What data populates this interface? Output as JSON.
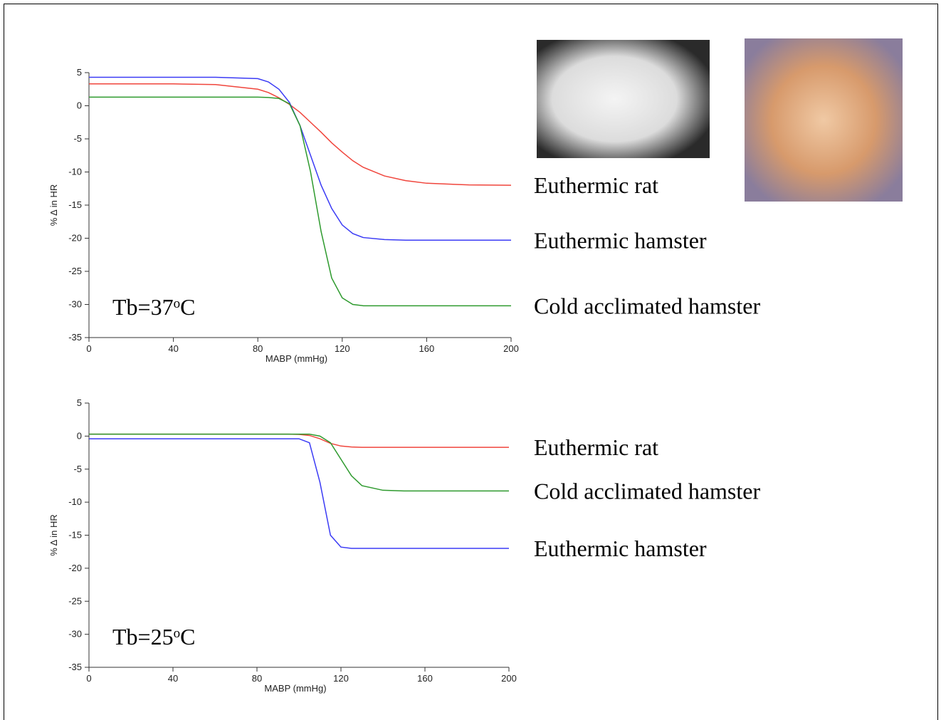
{
  "chart_data": [
    {
      "type": "line",
      "ylabel": "% Δ in HR",
      "xlabel": "MABP (mmHg)",
      "annotation": [
        "Tb=37",
        "o",
        "C"
      ],
      "xlim": [
        0,
        200
      ],
      "ylim": [
        -35,
        5
      ],
      "xticks": [
        0,
        40,
        80,
        120,
        160,
        200
      ],
      "yticks": [
        5,
        0,
        -5,
        -10,
        -15,
        -20,
        -25,
        -30,
        -35
      ],
      "x": [
        0,
        20,
        40,
        60,
        80,
        85,
        90,
        95,
        100,
        105,
        110,
        115,
        120,
        125,
        130,
        140,
        150,
        160,
        180,
        200
      ],
      "series": [
        {
          "name": "Euthermic rat",
          "color": "#f0453c",
          "values": [
            3.3,
            3.3,
            3.3,
            3.2,
            2.5,
            2.0,
            1.2,
            0.2,
            -1.0,
            -2.5,
            -4.0,
            -5.6,
            -7.0,
            -8.3,
            -9.3,
            -10.6,
            -11.3,
            -11.7,
            -11.95,
            -12
          ]
        },
        {
          "name": "Euthermic hamster",
          "color": "#3b3bf5",
          "values": [
            4.3,
            4.3,
            4.3,
            4.3,
            4.1,
            3.6,
            2.5,
            0.5,
            -3,
            -7.5,
            -12,
            -15.5,
            -18,
            -19.3,
            -19.9,
            -20.2,
            -20.3,
            -20.3,
            -20.3,
            -20.3
          ]
        },
        {
          "name": "Cold acclimated hamster",
          "color": "#2e9a2e",
          "values": [
            1.3,
            1.3,
            1.3,
            1.3,
            1.3,
            1.25,
            1.1,
            0.3,
            -3,
            -10,
            -19,
            -26,
            -29,
            -30,
            -30.2,
            -30.2,
            -30.2,
            -30.2,
            -30.2,
            -30.2
          ]
        }
      ]
    },
    {
      "type": "line",
      "ylabel": "% Δ in HR",
      "xlabel": "MABP (mmHg)",
      "annotation": [
        "Tb=25",
        "o",
        "C"
      ],
      "xlim": [
        0,
        200
      ],
      "ylim": [
        -35,
        5
      ],
      "xticks": [
        0,
        40,
        80,
        120,
        160,
        200
      ],
      "yticks": [
        5,
        0,
        -5,
        -10,
        -15,
        -20,
        -25,
        -30,
        -35
      ],
      "x": [
        0,
        20,
        40,
        60,
        80,
        85,
        90,
        95,
        100,
        105,
        110,
        115,
        120,
        125,
        130,
        140,
        150,
        160,
        180,
        200
      ],
      "series": [
        {
          "name": "Euthermic rat",
          "color": "#f0453c",
          "values": [
            0.3,
            0.3,
            0.3,
            0.3,
            0.3,
            0.3,
            0.3,
            0.3,
            0.25,
            0.1,
            -0.4,
            -1.1,
            -1.5,
            -1.65,
            -1.7,
            -1.7,
            -1.7,
            -1.7,
            -1.7,
            -1.7
          ]
        },
        {
          "name": "Cold acclimated hamster",
          "color": "#2e9a2e",
          "values": [
            0.3,
            0.3,
            0.3,
            0.3,
            0.3,
            0.3,
            0.3,
            0.3,
            0.3,
            0.3,
            0.0,
            -1.0,
            -3.5,
            -6.0,
            -7.5,
            -8.2,
            -8.3,
            -8.3,
            -8.3,
            -8.3
          ]
        },
        {
          "name": "Euthermic hamster",
          "color": "#3b3bf5",
          "values": [
            -0.4,
            -0.4,
            -0.4,
            -0.4,
            -0.4,
            -0.4,
            -0.4,
            -0.4,
            -0.4,
            -1.0,
            -7,
            -15,
            -16.8,
            -17,
            -17,
            -17,
            -17,
            -17,
            -17,
            -17
          ]
        }
      ]
    }
  ]
}
